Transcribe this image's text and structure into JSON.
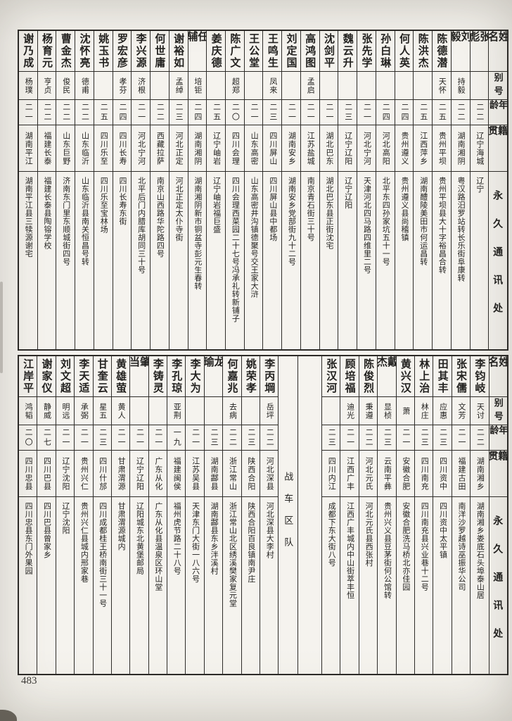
{
  "document": {
    "page_number": "483"
  },
  "row_headers": [
    "姓名",
    "别号",
    "年龄",
    "籍贯",
    "永久通讯处"
  ],
  "tables": [
    {
      "id": "table-top",
      "columns": [
        {
          "name": "张彪",
          "alias": "",
          "age": "二二",
          "origin": "辽宁海城",
          "address": "辽宁"
        },
        {
          "name": "刘毅",
          "alias": "持毅",
          "age": "二二",
          "origin": "湖南湘阴",
          "address": "粤汉路汨罗站转长乐街阜康转"
        },
        {
          "name": "陈德潜",
          "alias": "天怀",
          "age": "二五",
          "origin": "贵州平坝",
          "address": "贵州平坝县大十字裕昌合转"
        },
        {
          "name": "陈洪杰",
          "alias": "",
          "age": "二五",
          "origin": "江西萍乡",
          "address": "湖南醴陵美田市何运昌转"
        },
        {
          "name": "何人英",
          "alias": "",
          "age": "二四",
          "origin": "贵州遵义",
          "address": "贵州遵义县尚稽镇"
        },
        {
          "name": "孙白琳",
          "alias": "",
          "age": "二四",
          "origin": "河北高阳",
          "address": "北平东四孙家坑五十一号"
        },
        {
          "name": "张先学",
          "alias": "",
          "age": "二一",
          "origin": "河北宁河",
          "address": "天津河北四马路四维里二号"
        },
        {
          "name": "魏云升",
          "alias": "",
          "age": "二三",
          "origin": "辽宁辽阳",
          "address": "辽宁辽阳"
        },
        {
          "name": "沈剑平",
          "alias": "",
          "age": "二一",
          "origin": "湖北巴东",
          "address": "湖北巴东县正街沈宅"
        },
        {
          "name": "高鸿图",
          "alias": "孟启",
          "age": "二一",
          "origin": "江苏盐城",
          "address": "南京青石街三十号"
        },
        {
          "name": "刘定国",
          "alias": "",
          "age": "二一",
          "origin": "湖南安乡",
          "address": "湖南安乡党部街九十二号"
        },
        {
          "name": "王鸣生",
          "alias": "凤来",
          "age": "二三",
          "origin": "四川屏山",
          "address": "四川屏山县中都场"
        },
        {
          "name": "王公堂",
          "alias": "",
          "age": "二一",
          "origin": "山东高密",
          "address": "山东高密井沟镇德聚号交王家大浒"
        },
        {
          "name": "陈广文",
          "alias": "超郑",
          "age": "二〇",
          "origin": "四川会理",
          "address": "四川会理西菜园二十七号冯承礼转新铺子"
        },
        {
          "name": "姜庆德",
          "alias": "",
          "age": "二五",
          "origin": "辽宁岫岩",
          "address": "辽宁岫岩福巨盛"
        },
        {
          "name": "任辅",
          "alias": "培钜",
          "age": "二四",
          "origin": "湖南湘阴",
          "address": "湖南湘阴新市铜盆寺彭元生春转"
        },
        {
          "name": "谢裕如",
          "alias": "孟绰",
          "age": "二三",
          "origin": "河北正定",
          "address": "河北正定太仆寺街"
        },
        {
          "name": "何世庸",
          "alias": "",
          "age": "二二",
          "origin": "西藏拉萨",
          "address": "南京山西路华陀路四号"
        },
        {
          "name": "李兴源",
          "alias": "济根",
          "age": "二一",
          "origin": "河北宁河",
          "address": "北平后门内腊库胡同三十号"
        },
        {
          "name": "罗宏彦",
          "alias": "孝芬",
          "age": "二四",
          "origin": "四川长寿",
          "address": "四川长寿东街"
        },
        {
          "name": "姚玉书",
          "alias": "",
          "age": "二五",
          "origin": "四川乐至",
          "address": "四川乐至宝林场"
        },
        {
          "name": "沈怀亮",
          "alias": "德甫",
          "age": "二二",
          "origin": "山东临沂",
          "address": "山东临沂县南关恒昌号转"
        },
        {
          "name": "曹金杰",
          "alias": "俊民",
          "age": "二二",
          "origin": "山东巨野",
          "address": "济南东门里东顺城街四号"
        },
        {
          "name": "杨育元",
          "alias": "亨贞",
          "age": "二二",
          "origin": "福建长泰",
          "address": "福建长泰县陶镕学校"
        },
        {
          "name": "谢乃成",
          "alias": "杨璞",
          "age": "二一",
          "origin": "湖南平江",
          "address": "湖南平江县三犊源谢宅"
        }
      ]
    },
    {
      "id": "table-bottom",
      "columns": [
        {
          "name": "李钧岐",
          "alias": "天讨",
          "age": "二二",
          "origin": "湖南湘乡",
          "address": "湖南湘乡娄底石头埠泰山居"
        },
        {
          "name": "张宋儒",
          "alias": "文芳",
          "age": "二一",
          "origin": "福建古田",
          "address": "南洋沙罗越诗巫振华公司"
        },
        {
          "name": "田其丰",
          "alias": "应惠",
          "age": "二三",
          "origin": "四川资中",
          "address": "四川资中太平镇"
        },
        {
          "name": "林上治",
          "alias": "林庄",
          "age": "二三",
          "origin": "四川南充",
          "address": "四川南充县兴业巷十二号"
        },
        {
          "name": "黄兴汉",
          "alias": "萧",
          "age": "二一",
          "origin": "安徽合肥",
          "address": "安徽合肥洗马桥北亦佳园"
        },
        {
          "name": "戴杰",
          "alias": "显桢",
          "age": "二三",
          "origin": "云南平彝",
          "address": "贵州兴义县豆茅街何公馆转"
        },
        {
          "name": "陈俊烈",
          "alias": "秉遵",
          "age": "二二",
          "origin": "河北元氏",
          "address": "河北元氏县西张村"
        },
        {
          "name": "顾培福",
          "alias": "迪光",
          "age": "二一",
          "origin": "江西广丰",
          "address": "江西广丰城内中山街萃丰恒"
        },
        {
          "name": "张汉河",
          "alias": "",
          "age": "二三",
          "origin": "四川内江",
          "address": "成都下东大街八号"
        },
        {
          "type": "spacer"
        },
        {
          "type": "section",
          "label": "战车区队"
        },
        {
          "name": "李丙堈",
          "alias": "岳坪",
          "age": "二二",
          "origin": "河北深县",
          "address": "河北深县大李村"
        },
        {
          "name": "姚荣孝",
          "alias": "",
          "age": "二三",
          "origin": "陕西合阳",
          "address": "陕西合阳百良镇南尹庄"
        },
        {
          "name": "何嘉兆",
          "alias": "去病",
          "age": "二二",
          "origin": "浙江常山",
          "address": "浙江常山北区绣溪樊家复元堂"
        },
        {
          "name": "龙瑜",
          "alias": "",
          "age": "二三",
          "origin": "湖南酃县",
          "address": "湖南酃县东乡泮溪村"
        },
        {
          "name": "李大为",
          "alias": "",
          "age": "二一",
          "origin": "江苏吴县",
          "address": "天津东门大街一八六号"
        },
        {
          "name": "李孔琼",
          "alias": "亚荆",
          "age": "一九",
          "origin": "福建闽侯",
          "address": "福州虎节路二十八号"
        },
        {
          "name": "李铸灵",
          "alias": "",
          "age": "二一",
          "origin": "广东从化",
          "address": "广东从化县温泉区环山堂"
        },
        {
          "name": "肇当",
          "alias": "",
          "age": "二一",
          "origin": "辽宁辽阳",
          "address": "辽阳城东北黄堡邮局"
        },
        {
          "name": "黄雄萤",
          "alias": "黄人",
          "age": "二一",
          "origin": "甘肃渭源",
          "address": "甘肃渭源城内"
        },
        {
          "name": "甘奎云",
          "alias": "星五",
          "age": "二三",
          "origin": "四川什邡",
          "address": "四川成都桂王桥南街三十一号"
        },
        {
          "name": "李天适",
          "alias": "承弼",
          "age": "二一",
          "origin": "贵州兴仁",
          "address": "贵州兴仁县城内邢家巷"
        },
        {
          "name": "刘文超",
          "alias": "明远",
          "age": "二一",
          "origin": "辽宁沈阳",
          "address": "辽宁沈阳"
        },
        {
          "name": "谢家仪",
          "alias": "静威",
          "age": "二七",
          "origin": "四川巴县",
          "address": "四川巴县曾家乡"
        },
        {
          "name": "江岸平",
          "alias": "鸿韬",
          "age": "二〇",
          "origin": "四川忠县",
          "address": "四川忠县东门外果园"
        }
      ]
    }
  ]
}
